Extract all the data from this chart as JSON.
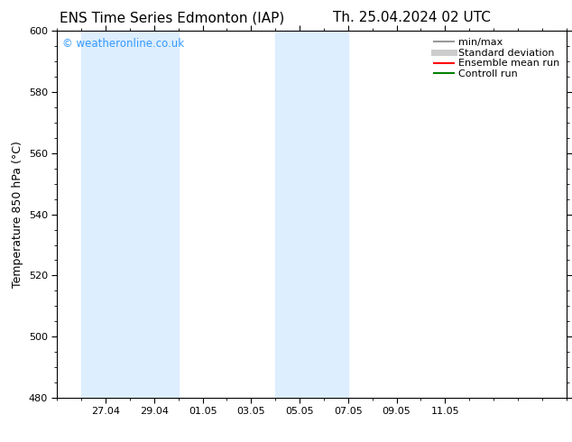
{
  "title_left": "ENS Time Series Edmonton (IAP)",
  "title_right": "Th. 25.04.2024 02 UTC",
  "ylabel": "Temperature 850 hPa (°C)",
  "ylim": [
    480,
    600
  ],
  "yticks": [
    480,
    500,
    520,
    540,
    560,
    580,
    600
  ],
  "xlim_start": 25.0,
  "xlim_end": 46.0,
  "xtick_positions": [
    27.0,
    29.0,
    31.0,
    33.0,
    35.0,
    37.0,
    39.0,
    41.0
  ],
  "xtick_labels": [
    "27.04",
    "29.04",
    "01.05",
    "03.05",
    "05.05",
    "07.05",
    "09.05",
    "11.05"
  ],
  "shaded_bands": [
    {
      "x_start": 26.0,
      "x_end": 30.0,
      "color": "#ddeeff"
    },
    {
      "x_start": 34.0,
      "x_end": 37.0,
      "color": "#ddeeff"
    }
  ],
  "watermark_text": "© weatheronline.co.uk",
  "watermark_color": "#3399ff",
  "background_color": "#ffffff",
  "plot_bg_color": "#ffffff",
  "legend_items": [
    {
      "label": "min/max",
      "color": "#999999",
      "lw": 1.5,
      "style": "solid"
    },
    {
      "label": "Standard deviation",
      "color": "#cccccc",
      "lw": 5,
      "style": "solid"
    },
    {
      "label": "Ensemble mean run",
      "color": "#ff0000",
      "lw": 1.5,
      "style": "solid"
    },
    {
      "label": "Controll run",
      "color": "#008000",
      "lw": 1.5,
      "style": "solid"
    }
  ],
  "title_fontsize": 11,
  "tick_fontsize": 8,
  "ylabel_fontsize": 9,
  "legend_fontsize": 8
}
